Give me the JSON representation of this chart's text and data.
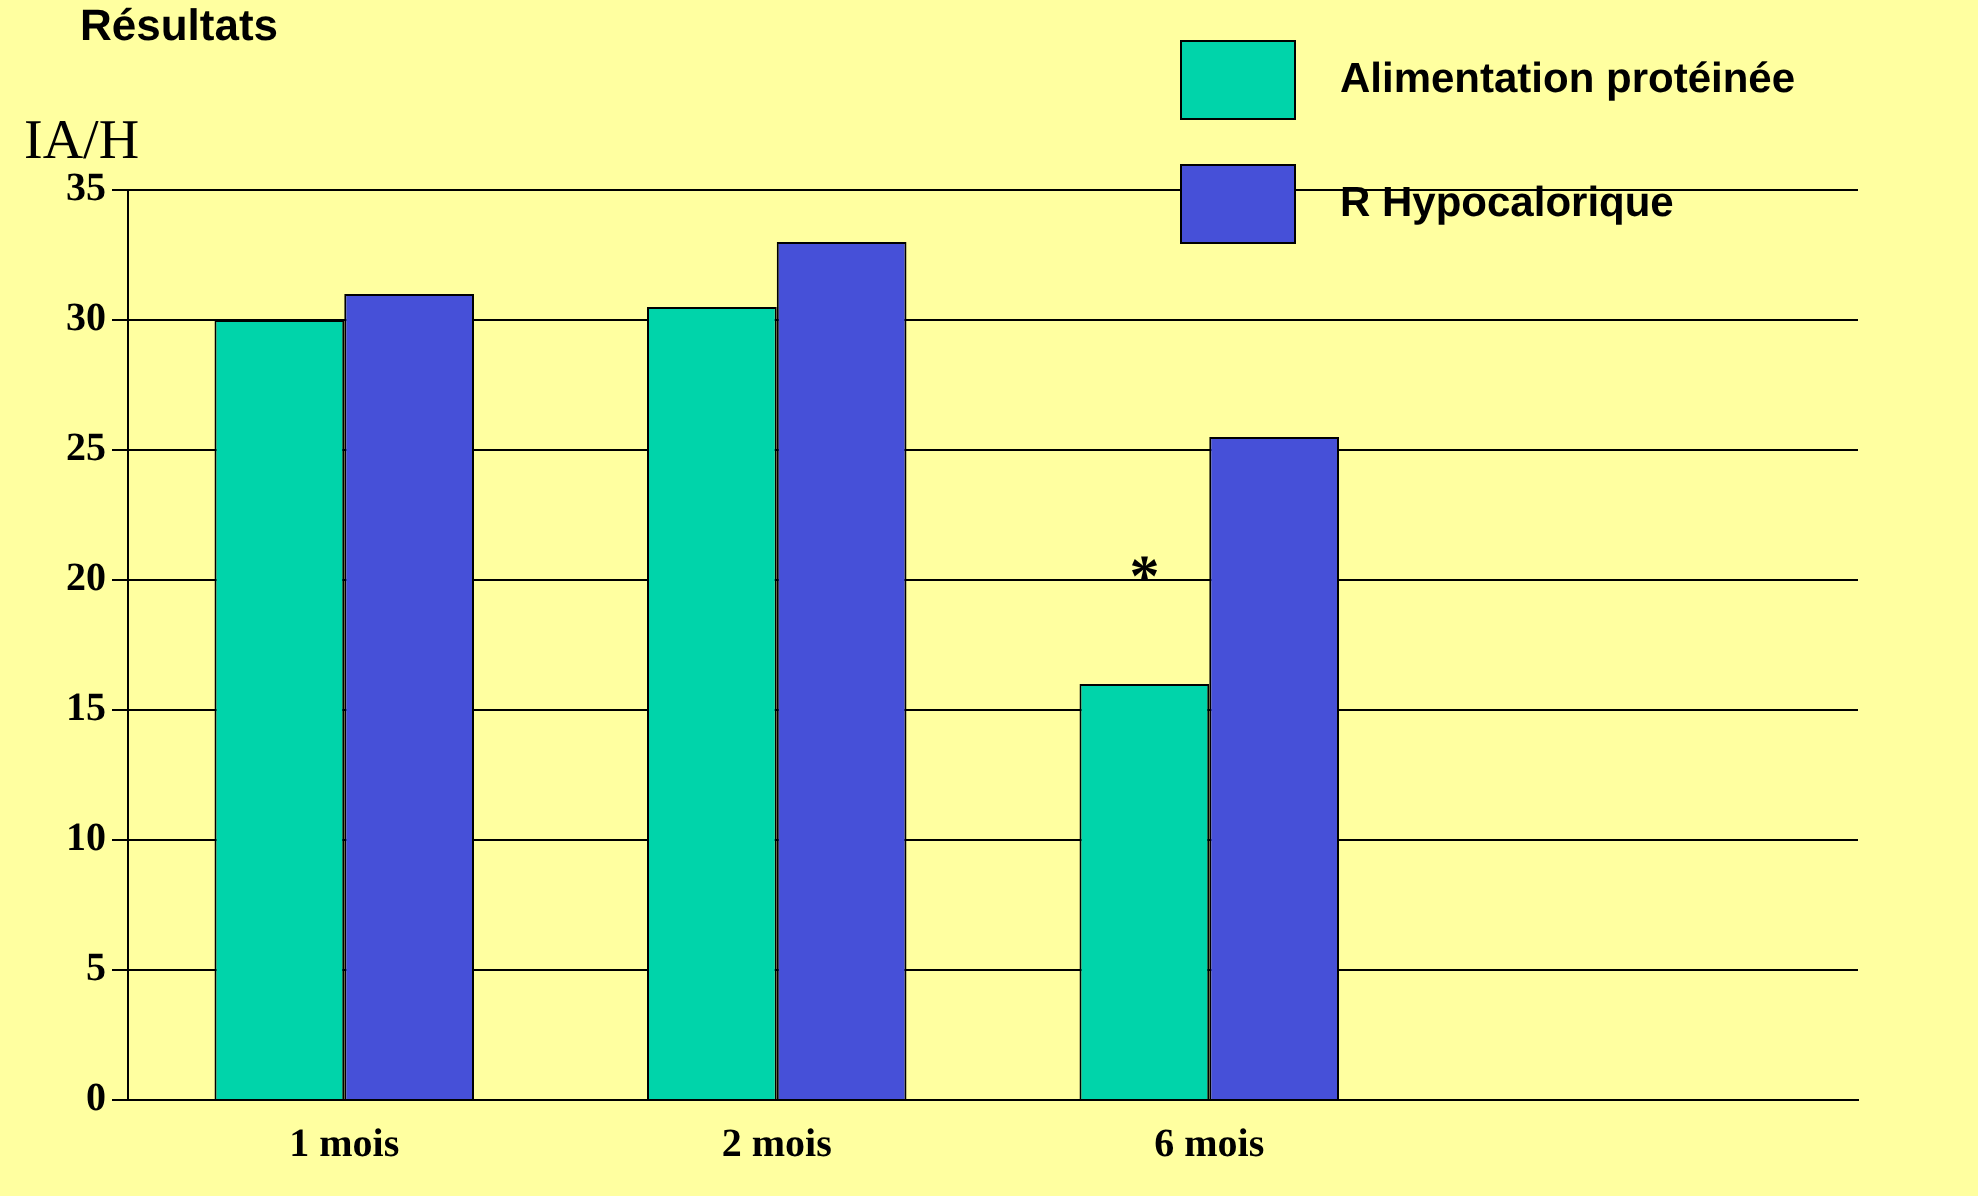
{
  "chart_data": {
    "type": "bar",
    "title": "Résultats",
    "ylabel": "IA/H",
    "categories": [
      "1 mois",
      "2 mois",
      "6 mois",
      null
    ],
    "series": [
      {
        "name": "Alimentation protéinée",
        "color": "#00d4aa",
        "values": [
          30,
          30.5,
          16,
          null
        ]
      },
      {
        "name": "R Hypocalorique",
        "color": "#4650d8",
        "values": [
          31,
          33,
          25.5,
          null
        ]
      }
    ],
    "ylim": [
      0,
      35
    ],
    "yticks": [
      0,
      5,
      10,
      15,
      20,
      25,
      30,
      35
    ],
    "grid": "y",
    "legend": "top right",
    "annotations": [
      {
        "text": "*",
        "x": "6 mois",
        "y": 20
      }
    ]
  }
}
